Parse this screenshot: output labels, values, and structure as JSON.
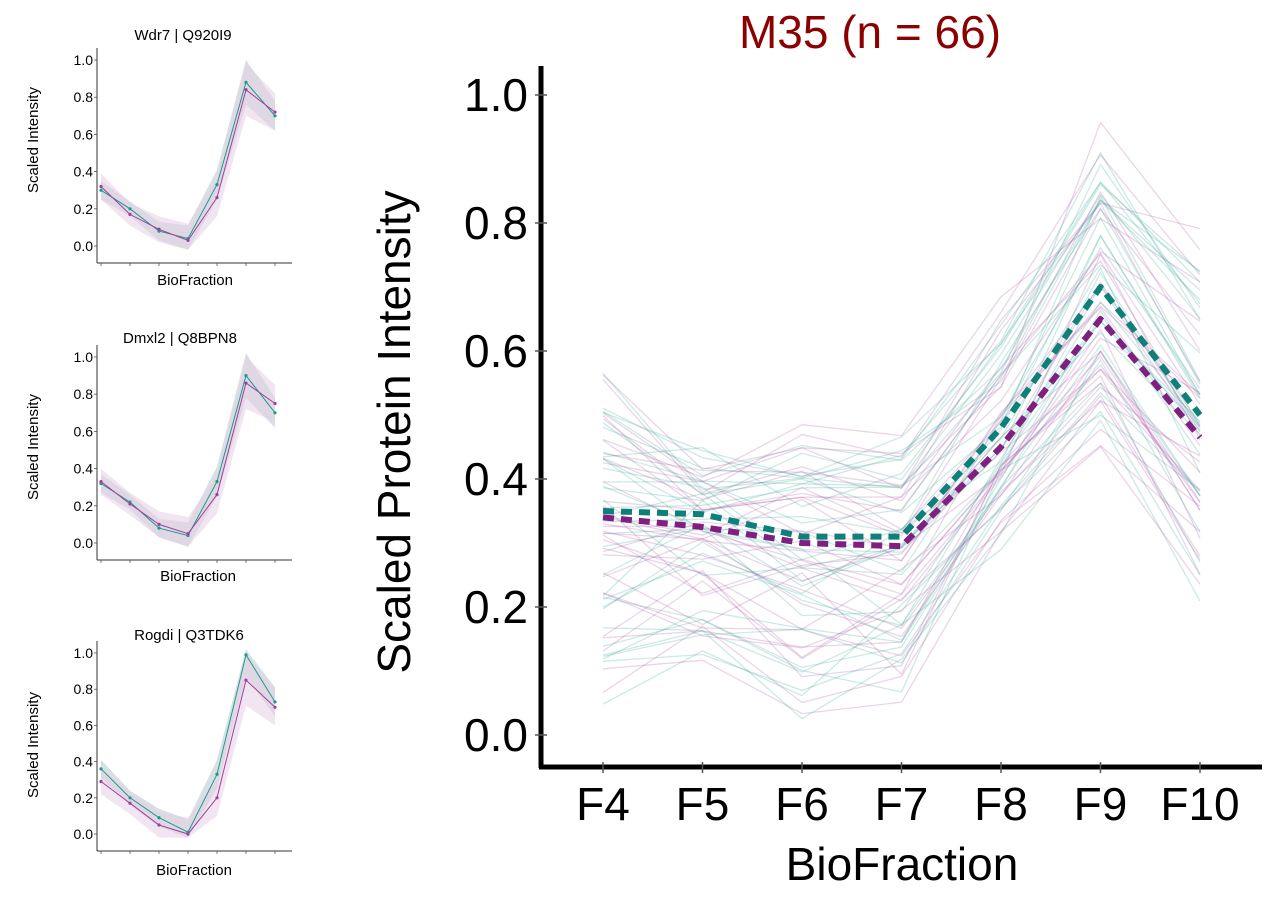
{
  "main_title": "M35 (n = 66)",
  "small_ylabel": "Scaled Intensity",
  "small_xlabel": "BioFraction",
  "colors": {
    "teal": "#1a9b8a",
    "purple": "#a0409c",
    "title": "#8b0000",
    "band_teal": "#b9c6cc",
    "band_purple": "#e3cfe6"
  },
  "chart_data": [
    {
      "id": "main",
      "type": "line",
      "title": "M35 (n = 66)",
      "xlabel": "BioFraction",
      "ylabel": "Scaled Protein Intensity",
      "categories": [
        "F4",
        "F5",
        "F6",
        "F7",
        "F8",
        "F9",
        "F10"
      ],
      "ylim": [
        0,
        1.0
      ],
      "yticks": [
        "0.0",
        "0.2",
        "0.4",
        "0.6",
        "0.8",
        "1.0"
      ],
      "grid": false,
      "series": [
        {
          "style": "dashed-mean",
          "color": "#0f7f7a",
          "values": [
            0.35,
            0.345,
            0.31,
            0.31,
            0.48,
            0.7,
            0.5
          ]
        },
        {
          "style": "dashed-mean",
          "color": "#7f1f80",
          "values": [
            0.34,
            0.325,
            0.3,
            0.295,
            0.45,
            0.65,
            0.465
          ]
        }
      ],
      "background_profiles": {
        "count": 66,
        "color_a": "#1a9b8a",
        "color_b": "#a0409c",
        "range_low": [
          0.03,
          0.1,
          0.0,
          0.02,
          0.28,
          0.43,
          0.17
        ],
        "range_high": [
          0.62,
          0.48,
          0.5,
          0.48,
          0.7,
          0.99,
          0.83
        ]
      }
    },
    {
      "id": "wdr7",
      "type": "line",
      "title": "Wdr7 | Q920I9",
      "xlabel": "BioFraction",
      "ylabel": "Scaled Intensity",
      "yticks": [
        "0.0",
        "0.2",
        "0.4",
        "0.6",
        "0.8",
        "1.0"
      ],
      "ylim": [
        0,
        1.0
      ],
      "series": [
        {
          "color": "#1a9b8a",
          "values": [
            0.3,
            0.2,
            0.08,
            0.04,
            0.33,
            0.88,
            0.7
          ]
        },
        {
          "color": "#a0409c",
          "values": [
            0.32,
            0.17,
            0.09,
            0.03,
            0.26,
            0.84,
            0.72
          ]
        }
      ]
    },
    {
      "id": "dmxl2",
      "type": "line",
      "title": "Dmxl2 | Q8BPN8",
      "xlabel": "BioFraction",
      "ylabel": "Scaled Intensity",
      "yticks": [
        "0.0",
        "0.2",
        "0.4",
        "0.6",
        "0.8",
        "1.0"
      ],
      "ylim": [
        0,
        1.0
      ],
      "series": [
        {
          "color": "#1a9b8a",
          "values": [
            0.32,
            0.22,
            0.08,
            0.04,
            0.33,
            0.9,
            0.7
          ]
        },
        {
          "color": "#a0409c",
          "values": [
            0.33,
            0.21,
            0.1,
            0.05,
            0.26,
            0.86,
            0.75
          ]
        }
      ]
    },
    {
      "id": "rogdi",
      "type": "line",
      "title": "Rogdi | Q3TDK6",
      "xlabel": "BioFraction",
      "ylabel": "Scaled Intensity",
      "yticks": [
        "0.0",
        "0.2",
        "0.4",
        "0.6",
        "0.8",
        "1.0"
      ],
      "ylim": [
        0,
        1.0
      ],
      "series": [
        {
          "color": "#1a9b8a",
          "values": [
            0.36,
            0.2,
            0.09,
            0.01,
            0.33,
            0.99,
            0.73
          ]
        },
        {
          "color": "#a0409c",
          "values": [
            0.29,
            0.17,
            0.05,
            0.0,
            0.2,
            0.85,
            0.7
          ]
        }
      ]
    }
  ]
}
